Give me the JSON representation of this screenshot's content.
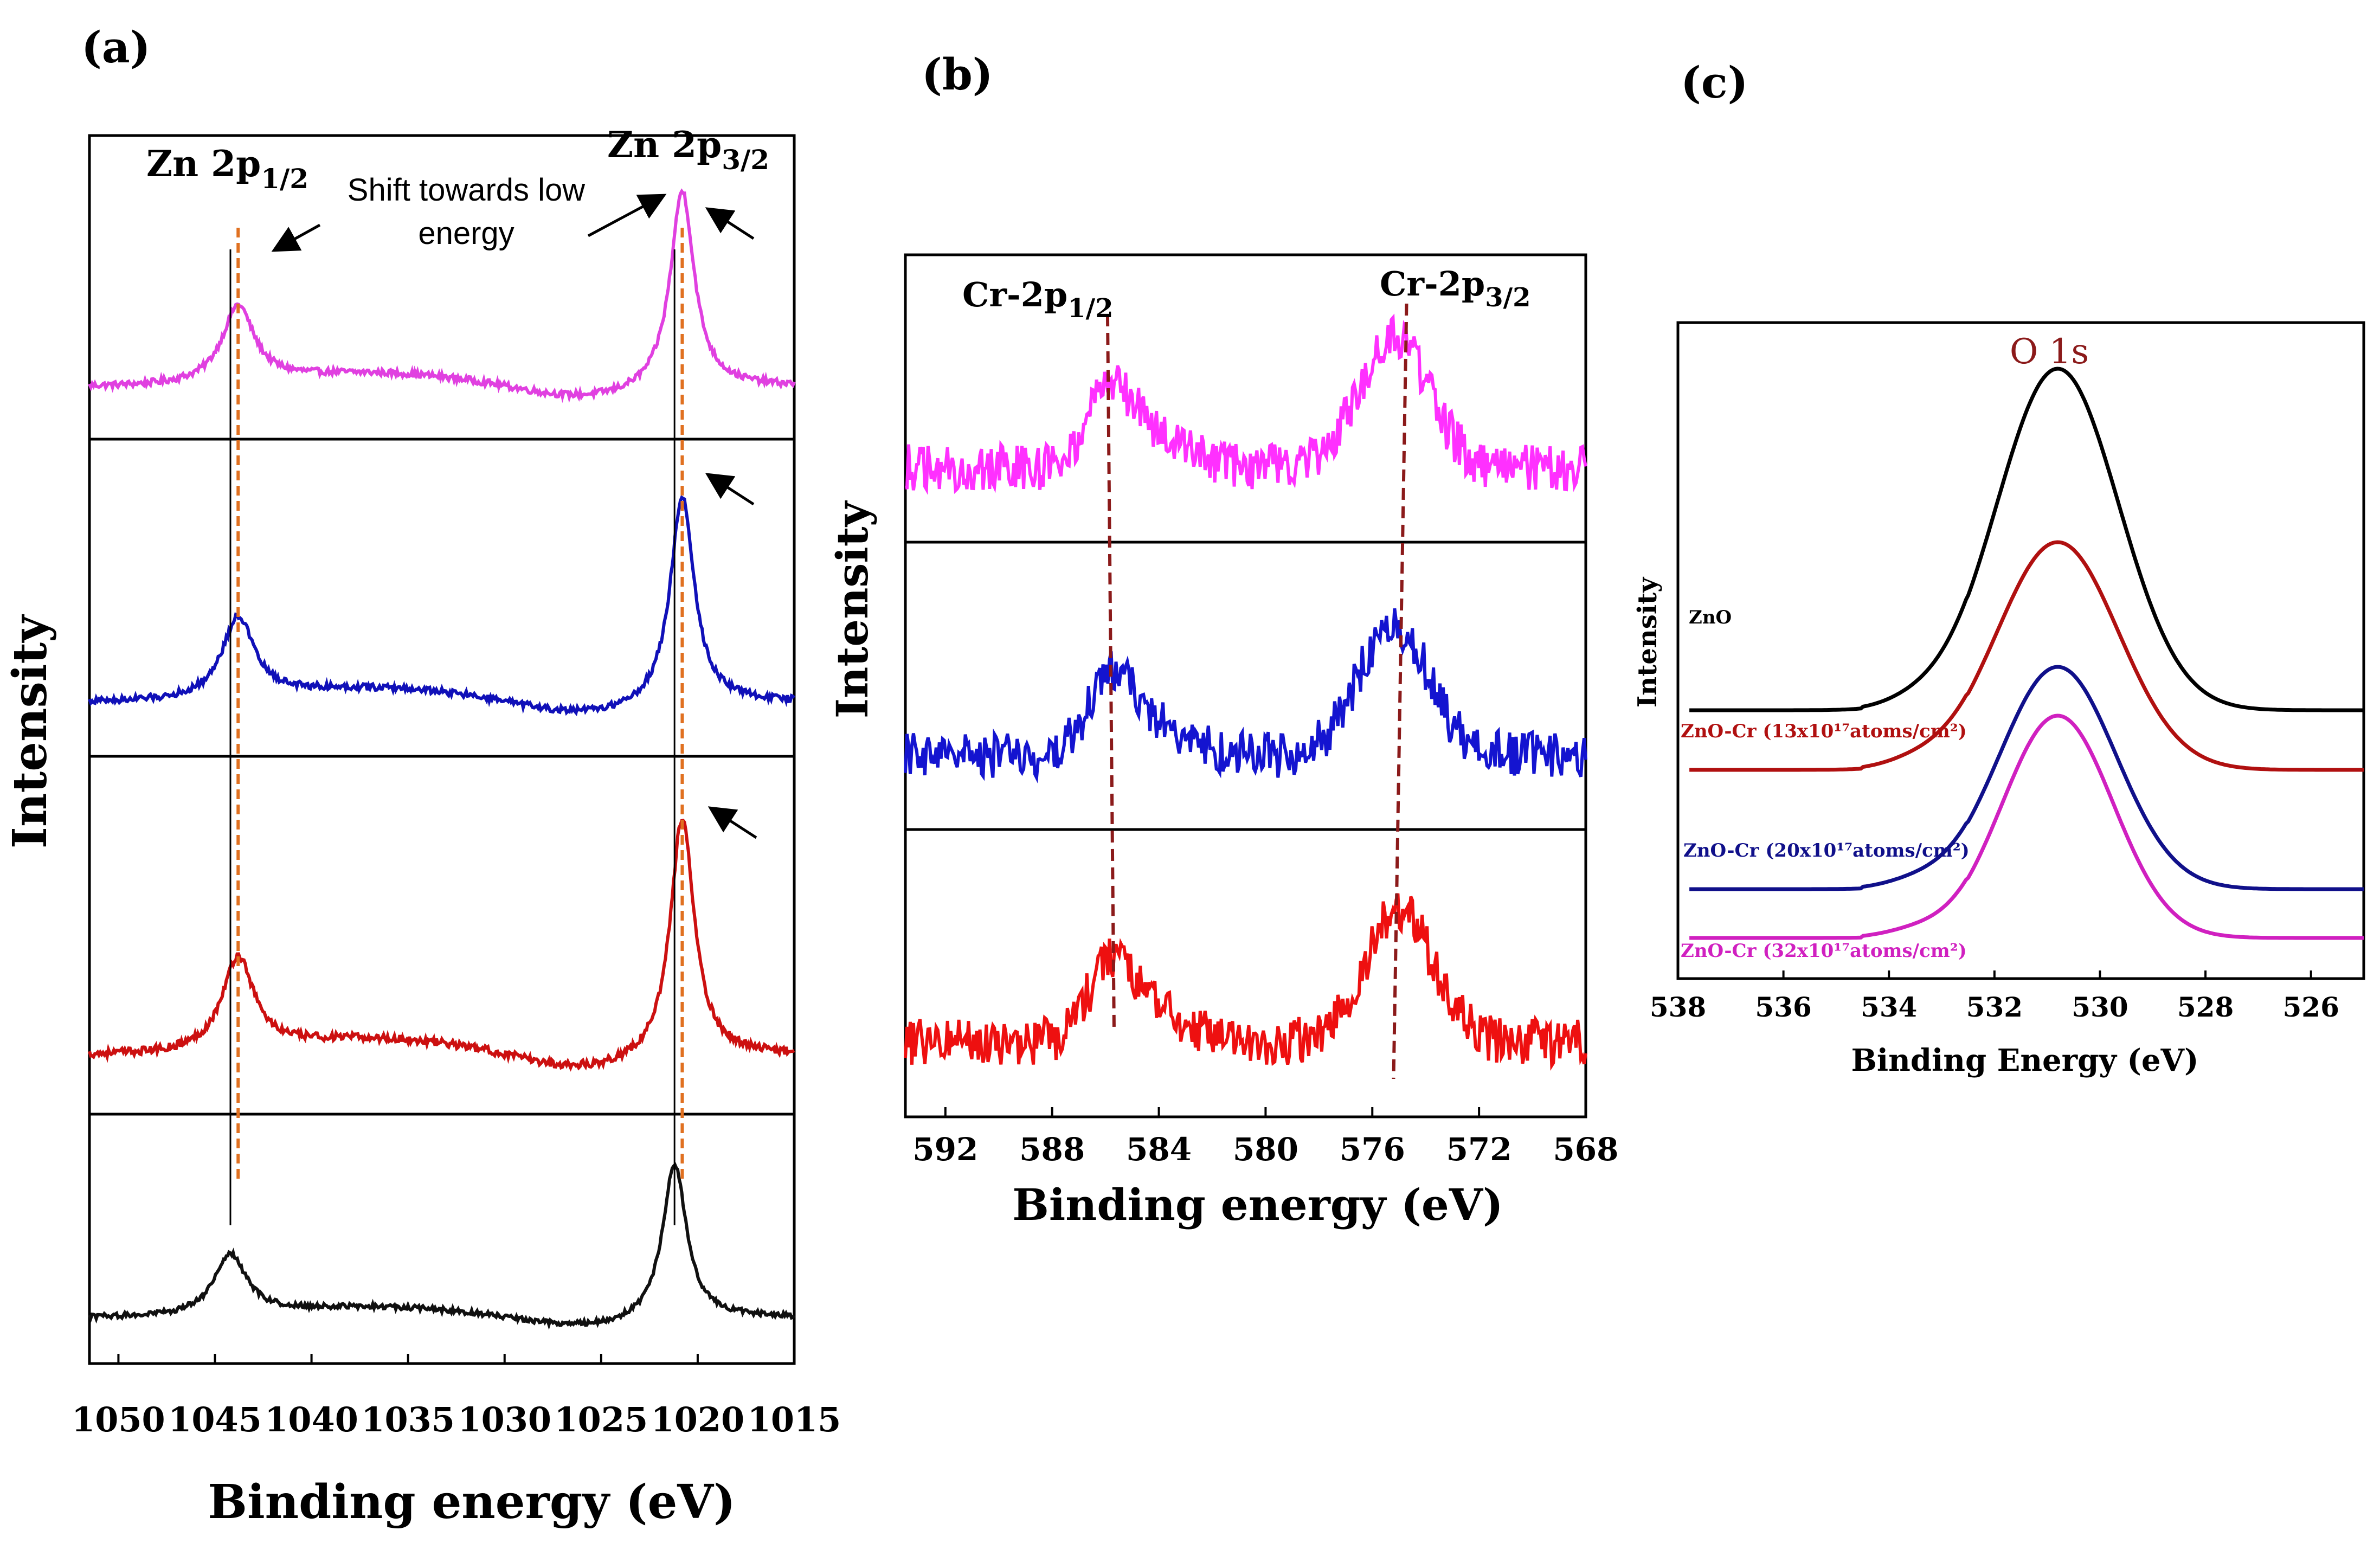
{
  "chart_data": [
    {
      "type": "line",
      "panel_label": "(a)",
      "xlabel": "Binding energy (eV)",
      "ylabel": "Intensity",
      "xlim": [
        1051.5,
        1015
      ],
      "xticks": [
        "1050",
        "1045",
        "1040",
        "1035",
        "1030",
        "1025",
        "1020",
        "1015"
      ],
      "xtick_values": [
        1050,
        1045,
        1040,
        1035,
        1030,
        1025,
        1020,
        1015
      ],
      "peak_labels": [
        {
          "main": "Zn 2p",
          "sub": "1/2",
          "position": 1044.2
        },
        {
          "main": "Zn 2p",
          "sub": "3/2",
          "position": 1021.2
        }
      ],
      "annotation": [
        "Shift towards low",
        "energy"
      ],
      "reference_lines": [
        1044.2,
        1021.2
      ],
      "shifted_lines": [
        1043.8,
        1020.8
      ],
      "stack_order": "top-to-bottom",
      "series": [
        {
          "name": "magenta",
          "color": "#e040e0",
          "peak1": 1043.8,
          "peak2": 1020.8,
          "h1": 0.55,
          "h2": 1.0
        },
        {
          "name": "blue",
          "color": "#1010b8",
          "peak1": 1043.8,
          "peak2": 1020.8,
          "h1": 0.55,
          "h2": 1.0
        },
        {
          "name": "red",
          "color": "#cc1010",
          "peak1": 1043.8,
          "peak2": 1020.8,
          "h1": 0.55,
          "h2": 1.0
        },
        {
          "name": "black",
          "color": "#101010",
          "peak1": 1044.2,
          "peak2": 1021.2,
          "h1": 0.55,
          "h2": 1.0
        }
      ]
    },
    {
      "type": "line",
      "panel_label": "(b)",
      "xlabel": "Binding energy (eV)",
      "ylabel": "Intensity",
      "xlim": [
        593.5,
        568
      ],
      "xticks": [
        "592",
        "588",
        "584",
        "580",
        "576",
        "572",
        "568"
      ],
      "xtick_values": [
        592,
        588,
        584,
        580,
        576,
        572,
        568
      ],
      "peak_labels": [
        {
          "main": "Cr-2p",
          "sub": "1/2",
          "position": 585.8
        },
        {
          "main": "Cr-2p",
          "sub": "3/2",
          "position": 575.0
        }
      ],
      "reference_lines": [
        585.8,
        575.0
      ],
      "stack_order": "top-to-bottom",
      "series": [
        {
          "name": "magenta",
          "color": "#ff30ff",
          "peak1": 585.8,
          "peak2": 575.2
        },
        {
          "name": "blue",
          "color": "#1414d0",
          "peak1": 585.8,
          "peak2": 575.2
        },
        {
          "name": "red",
          "color": "#ee1010",
          "peak1": 585.8,
          "peak2": 575.0
        }
      ]
    },
    {
      "type": "line",
      "panel_label": "(c)",
      "title": "O 1s",
      "xlabel": "Binding Energy (eV)",
      "ylabel": "Intensity",
      "xlim": [
        538,
        525
      ],
      "xticks": [
        "538",
        "536",
        "534",
        "532",
        "530",
        "528",
        "526"
      ],
      "xtick_values": [
        538,
        536,
        534,
        532,
        530,
        528,
        526
      ],
      "series": [
        {
          "name": "ZnO",
          "label": "ZnO",
          "color": "#000000",
          "center": 530.8
        },
        {
          "name": "ZnO-Cr 13",
          "label": "ZnO-Cr (13x10¹⁷atoms/cm²)",
          "color": "#b01010",
          "center": 530.8
        },
        {
          "name": "ZnO-Cr 20",
          "label": "ZnO-Cr (20x10¹⁷atoms/cm²)",
          "color": "#10108a",
          "center": 530.8
        },
        {
          "name": "ZnO-Cr 32",
          "label": "ZnO-Cr (32x10¹⁷atoms/cm²)",
          "color": "#d020c0",
          "center": 530.8
        }
      ]
    }
  ]
}
